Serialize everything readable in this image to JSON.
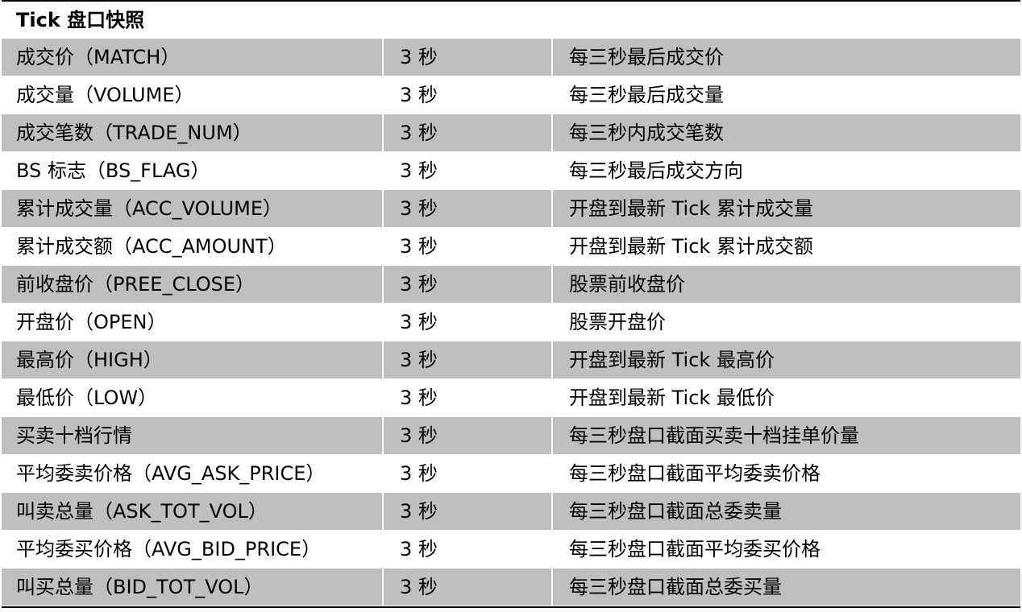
{
  "header": {
    "title": "Tick 盘口快照"
  },
  "rows": [
    {
      "field": "成交价（MATCH）",
      "freq": "3 秒",
      "desc": "每三秒最后成交价"
    },
    {
      "field": "成交量（VOLUME）",
      "freq": "3 秒",
      "desc": "每三秒最后成交量"
    },
    {
      "field": "成交笔数（TRADE_NUM）",
      "freq": "3 秒",
      "desc": "每三秒内成交笔数"
    },
    {
      "field": "BS 标志（BS_FLAG）",
      "freq": "3 秒",
      "desc": "每三秒最后成交方向"
    },
    {
      "field": "累计成交量（ACC_VOLUME）",
      "freq": "3 秒",
      "desc": "开盘到最新 Tick 累计成交量"
    },
    {
      "field": "累计成交额（ACC_AMOUNT）",
      "freq": "3 秒",
      "desc": "开盘到最新 Tick 累计成交额"
    },
    {
      "field": "前收盘价（PREE_CLOSE）",
      "freq": "3 秒",
      "desc": "股票前收盘价"
    },
    {
      "field": "开盘价（OPEN）",
      "freq": "3 秒",
      "desc": "股票开盘价"
    },
    {
      "field": "最高价（HIGH）",
      "freq": "3 秒",
      "desc": "开盘到最新 Tick 最高价"
    },
    {
      "field": "最低价（LOW）",
      "freq": "3 秒",
      "desc": "开盘到最新 Tick 最低价"
    },
    {
      "field": "买卖十档行情",
      "freq": "3 秒",
      "desc": "每三秒盘口截面买卖十档挂单价量"
    },
    {
      "field": "平均委卖价格（AVG_ASK_PRICE）",
      "freq": "3 秒",
      "desc": "每三秒盘口截面平均委卖价格"
    },
    {
      "field": "叫卖总量（ASK_TOT_VOL）",
      "freq": "3 秒",
      "desc": "每三秒盘口截面总委卖量"
    },
    {
      "field": "平均委买价格（AVG_BID_PRICE）",
      "freq": "3 秒",
      "desc": "每三秒盘口截面平均委买价格"
    },
    {
      "field": "叫买总量（BID_TOT_VOL）",
      "freq": "3 秒",
      "desc": "每三秒盘口截面总委买量"
    }
  ],
  "colors": {
    "shaded_row": "#bfbfbf",
    "rule": "#000000"
  }
}
